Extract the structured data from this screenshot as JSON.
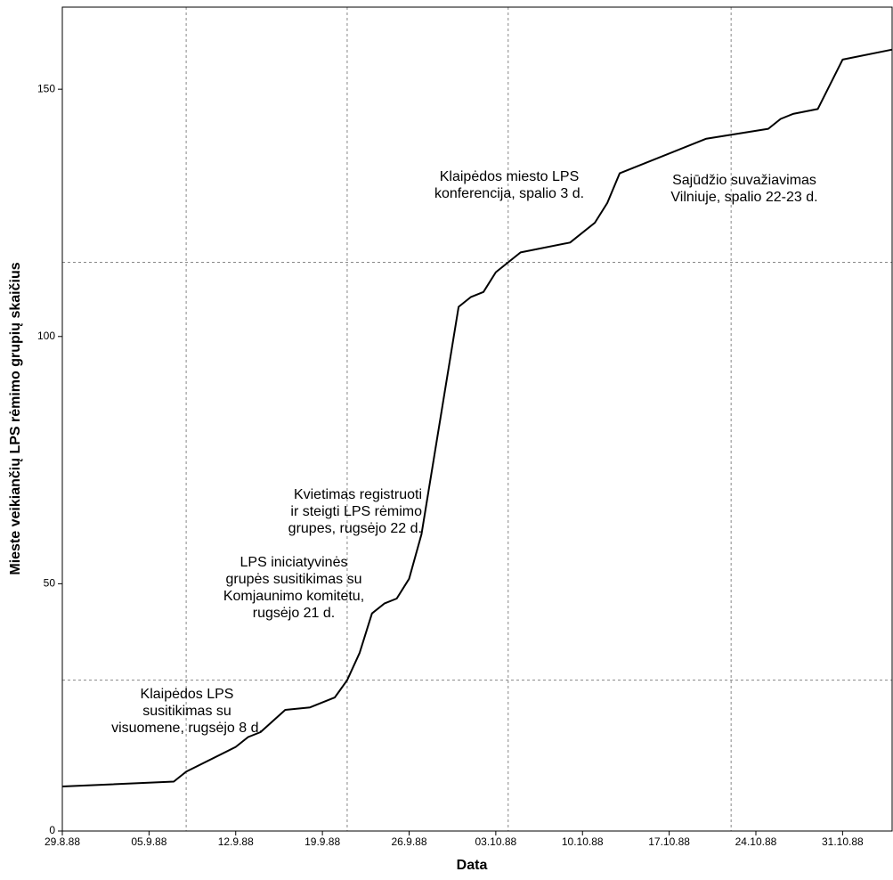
{
  "chart_data": {
    "type": "line",
    "xlabel": "Data",
    "ylabel": "Mieste veikiančių LPS rėmimo grupių skaičius",
    "x": [
      "1988-08-29",
      "1988-09-07",
      "1988-09-08",
      "1988-09-12",
      "1988-09-13",
      "1988-09-14",
      "1988-09-16",
      "1988-09-18",
      "1988-09-20",
      "1988-09-21",
      "1988-09-22",
      "1988-09-23",
      "1988-09-24",
      "1988-09-25",
      "1988-09-26",
      "1988-09-27",
      "1988-09-30",
      "1988-10-01",
      "1988-10-02",
      "1988-10-03",
      "1988-10-04",
      "1988-10-05",
      "1988-10-09",
      "1988-10-11",
      "1988-10-12",
      "1988-10-13",
      "1988-10-20",
      "1988-10-25",
      "1988-10-26",
      "1988-10-27",
      "1988-10-29",
      "1988-10-31",
      "1988-11-04"
    ],
    "series": [
      {
        "color": "#000000",
        "values": [
          9,
          10,
          12,
          17,
          19,
          20,
          24.5,
          25,
          27,
          30.5,
          36,
          44,
          46,
          47,
          51,
          60,
          106,
          108,
          109,
          113,
          115,
          117,
          119,
          123,
          127,
          133,
          140,
          142,
          144,
          145,
          146,
          156,
          158
        ]
      }
    ],
    "xlim": [
      "1988-08-29",
      "1988-11-04"
    ],
    "xticks": [
      {
        "value": "1988-08-29",
        "label": "29.8.88"
      },
      {
        "value": "1988-09-05",
        "label": "05.9.88"
      },
      {
        "value": "1988-09-12",
        "label": "12.9.88"
      },
      {
        "value": "1988-09-19",
        "label": "19.9.88"
      },
      {
        "value": "1988-09-26",
        "label": "26.9.88"
      },
      {
        "value": "1988-10-03",
        "label": "03.10.88"
      },
      {
        "value": "1988-10-10",
        "label": "10.10.88"
      },
      {
        "value": "1988-10-17",
        "label": "17.10.88"
      },
      {
        "value": "1988-10-24",
        "label": "24.10.88"
      },
      {
        "value": "1988-10-31",
        "label": "31.10.88"
      }
    ],
    "ylim": [
      0,
      166.6
    ],
    "yticks": [
      0,
      50,
      100,
      150
    ],
    "vlines": [
      "1988-09-08",
      "1988-09-21",
      "1988-10-04",
      "1988-10-22"
    ],
    "hlines": [
      115,
      30.5
    ],
    "annotations": [
      {
        "lines": [
          "Klaipėdos LPS",
          "susitikimas su",
          "visuomene, rugsėjo 8 d."
        ]
      },
      {
        "lines": [
          "LPS iniciatyvinės",
          "grupės susitikimas su",
          "Komjaunimo komitetu,",
          "rugsėjo 21 d."
        ]
      },
      {
        "lines": [
          "Kvietimas registruoti",
          "ir steigti LPS rėmimo",
          "grupes, rugsėjo 22 d."
        ]
      },
      {
        "lines": [
          "Klaipėdos miesto LPS",
          "konferencija, spalio 3 d."
        ]
      },
      {
        "lines": [
          "Sajūdžio suvažiavimas",
          "Vilniuje, spalio 22-23 d."
        ]
      }
    ]
  }
}
